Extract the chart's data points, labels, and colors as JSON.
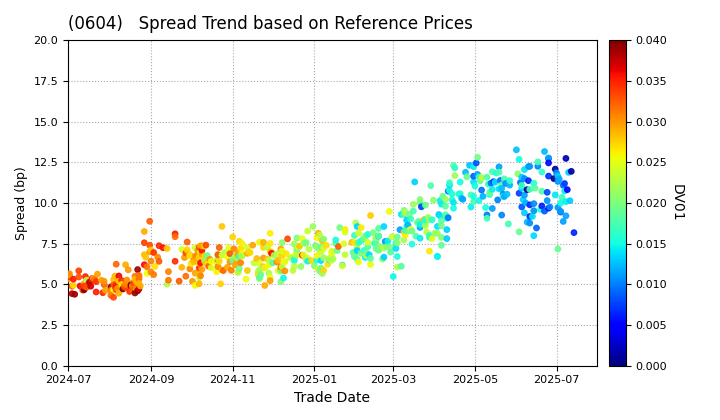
{
  "title": "(0604)   Spread Trend based on Reference Prices",
  "xlabel": "Trade Date",
  "ylabel": "Spread (bp)",
  "colorbar_label": "DV01",
  "colorbar_min": 0.0,
  "colorbar_max": 0.04,
  "colorbar_ticks": [
    0.0,
    0.005,
    0.01,
    0.015,
    0.02,
    0.025,
    0.03,
    0.035,
    0.04
  ],
  "ylim": [
    0.0,
    20.0
  ],
  "yticks": [
    0.0,
    2.5,
    5.0,
    7.5,
    10.0,
    12.5,
    15.0,
    17.5,
    20.0
  ],
  "date_start": "2024-07-01",
  "date_end": "2025-07-31",
  "xtick_labels": [
    "2024-09",
    "2024-11",
    "2025-01",
    "2025-03",
    "2025-05",
    "2025-07"
  ],
  "background_color": "#ffffff",
  "grid_color": "#aaaaaa",
  "scatter_size": 15,
  "seed": 42
}
